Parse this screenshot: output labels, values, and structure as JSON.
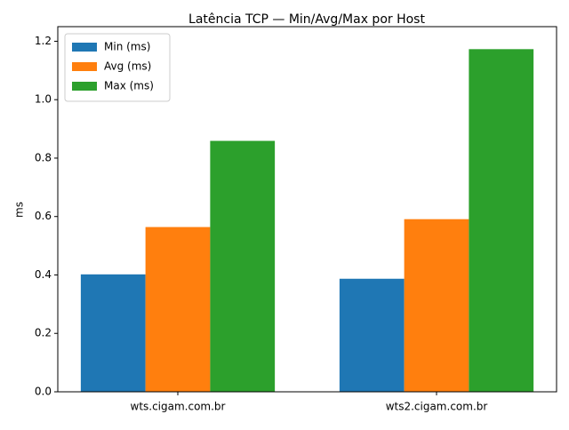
{
  "chart_data": {
    "type": "bar",
    "title": "Latência TCP — Min/Avg/Max por Host",
    "ylabel": "ms",
    "categories": [
      "wts.cigam.com.br",
      "wts2.cigam.com.br"
    ],
    "series": [
      {
        "name": "Min (ms)",
        "color": "#1f77b4",
        "values": [
          0.402,
          0.387
        ]
      },
      {
        "name": "Avg (ms)",
        "color": "#ff7f0e",
        "values": [
          0.564,
          0.591
        ]
      },
      {
        "name": "Max (ms)",
        "color": "#2ca02c",
        "values": [
          0.859,
          1.173
        ]
      }
    ],
    "ylim": [
      0,
      1.25
    ],
    "yticks": [
      {
        "value": 0,
        "label": "0.0"
      },
      0.2,
      0.4,
      0.6,
      0.8,
      {
        "value": 1,
        "label": "1.0"
      },
      1.2
    ],
    "legend": "upper left"
  }
}
